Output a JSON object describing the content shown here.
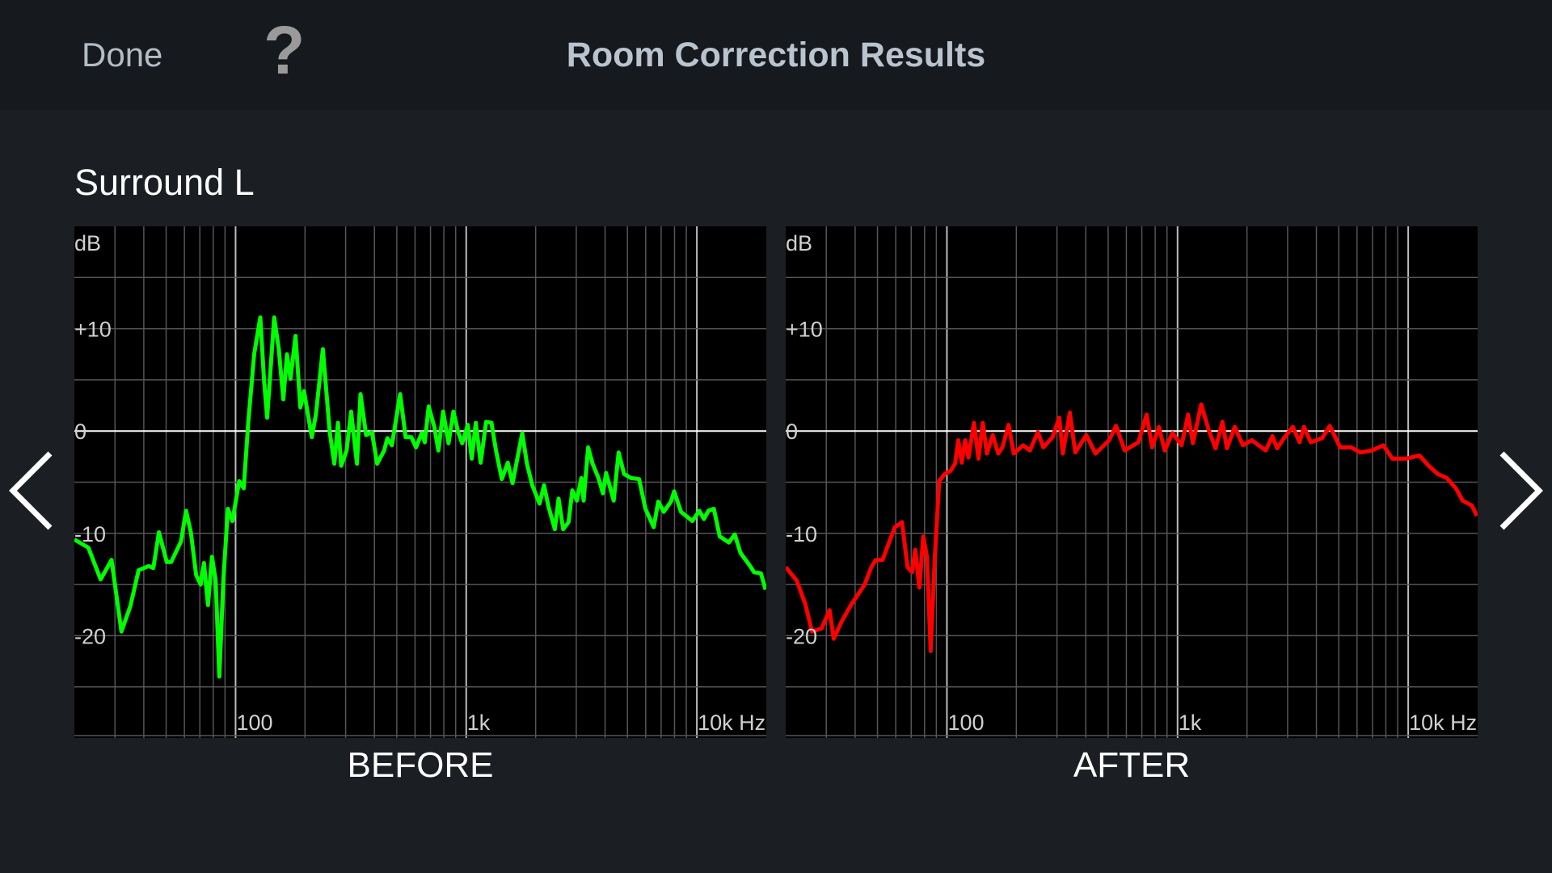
{
  "header": {
    "done_label": "Done",
    "help_label": "?",
    "title": "Room Correction Results"
  },
  "channel_name": "Surround L",
  "navigation": {
    "prev_icon": "chevron-left-icon",
    "next_icon": "chevron-right-icon"
  },
  "chart_data": [
    {
      "type": "line",
      "title": "BEFORE",
      "ylabel": "dB",
      "xscale": "log",
      "xlim": [
        20,
        20000
      ],
      "ylim": [
        -30,
        20
      ],
      "yticks": [
        {
          "value": 10,
          "label": "+10"
        },
        {
          "value": 0,
          "label": "0"
        },
        {
          "value": -10,
          "label": "-10"
        },
        {
          "value": -20,
          "label": "-20"
        }
      ],
      "xticks": [
        {
          "value": 100,
          "label": "100"
        },
        {
          "value": 1000,
          "label": "1k"
        },
        {
          "value": 10000,
          "label": "10k Hz"
        }
      ],
      "grid": true,
      "color": "#00ff00",
      "x": [
        20,
        23,
        26,
        29,
        32,
        35,
        38,
        42,
        44,
        46.5,
        50.3,
        52.6,
        58,
        61,
        64,
        67.5,
        70.6,
        72.9,
        75.9,
        79,
        82,
        85,
        88.5,
        92.6,
        96.9,
        103.7,
        108.5,
        113.5,
        120.4,
        128,
        133,
        137,
        147,
        154,
        161,
        167,
        173,
        182,
        191,
        198,
        214,
        223,
        239,
        256,
        268,
        278,
        287,
        303,
        317,
        336,
        348,
        368,
        390,
        411,
        441,
        455,
        476,
        517,
        546,
        578,
        606,
        641,
        661,
        687,
        727,
        757,
        794,
        838,
        880,
        923,
        961,
        1016,
        1057,
        1100,
        1155,
        1220,
        1287,
        1346,
        1427,
        1514,
        1588,
        1750,
        1834,
        1934,
        2079,
        2174,
        2274,
        2423,
        2513,
        2632,
        2779,
        2883,
        3016,
        3155,
        3227,
        3377,
        3531,
        3745,
        3915,
        4040,
        4358,
        4579,
        4837,
        5180,
        5615,
        5985,
        6500,
        6800,
        7180,
        7720,
        7970,
        8540,
        9560,
        10250,
        10730,
        11220,
        11850,
        12560,
        13760,
        14600,
        15450,
        16900,
        17700,
        18950,
        19850
      ],
      "y": [
        -10.6,
        -11.4,
        -14.5,
        -12.6,
        -19.6,
        -17.1,
        -13.6,
        -13.2,
        -13.4,
        -9.9,
        -12.8,
        -12.8,
        -10.8,
        -7.8,
        -9.9,
        -14.1,
        -15.0,
        -12.9,
        -17.0,
        -12.3,
        -14.6,
        -24,
        -14.6,
        -7.6,
        -8.8,
        -4.9,
        -5.6,
        0.8,
        7.5,
        11.1,
        4.8,
        1.3,
        11.1,
        8.0,
        3.1,
        7.5,
        5.1,
        9.3,
        2.3,
        3.9,
        -0.6,
        1.6,
        8.0,
        -0.1,
        -3.2,
        0.8,
        -3.4,
        -1.9,
        1.9,
        -3.2,
        3.6,
        -0.4,
        -0.1,
        -3.2,
        -1.9,
        -0.7,
        -1.4,
        3.6,
        -0.6,
        -0.6,
        -1.6,
        -0.2,
        -1.1,
        2.4,
        0.4,
        -1.9,
        1.9,
        -1.2,
        1.9,
        -0.1,
        -1.2,
        0.6,
        -2.7,
        0.8,
        -3.1,
        0.9,
        0.8,
        -1.9,
        -4.7,
        -3.1,
        -5.1,
        -0.2,
        -3.2,
        -5.3,
        -7.1,
        -5.3,
        -7.4,
        -9.6,
        -6.6,
        -9.6,
        -8.9,
        -5.8,
        -6.8,
        -4.6,
        -6.8,
        -1.6,
        -3.2,
        -4.6,
        -6.1,
        -4.1,
        -6.8,
        -2.1,
        -4.2,
        -4.6,
        -4.7,
        -7.6,
        -9.4,
        -6.9,
        -7.9,
        -6.9,
        -5.9,
        -7.9,
        -8.8,
        -7.8,
        -8.6,
        -7.8,
        -7.6,
        -10.3,
        -10.9,
        -10.1,
        -11.9,
        -13.1,
        -13.8,
        -13.9,
        -15.5
      ]
    },
    {
      "type": "line",
      "title": "AFTER",
      "ylabel": "dB",
      "xscale": "log",
      "xlim": [
        20,
        20000
      ],
      "ylim": [
        -30,
        20
      ],
      "yticks": [
        {
          "value": 10,
          "label": "+10"
        },
        {
          "value": 0,
          "label": "0"
        },
        {
          "value": -10,
          "label": "-10"
        },
        {
          "value": -20,
          "label": "-20"
        }
      ],
      "xticks": [
        {
          "value": 100,
          "label": "100"
        },
        {
          "value": 1000,
          "label": "1k"
        },
        {
          "value": 10000,
          "label": "10k Hz"
        }
      ],
      "grid": true,
      "color": "#ff0000",
      "x": [
        20,
        22.3,
        24.4,
        26,
        28.6,
        31,
        32.3,
        35,
        38.4,
        44,
        47,
        49.2,
        52.6,
        56.3,
        59.5,
        63.9,
        67.5,
        70.6,
        72.9,
        75.9,
        79,
        82,
        85,
        88.5,
        92.6,
        97.8,
        103.7,
        108.5,
        112,
        116,
        120,
        124,
        131,
        137,
        143,
        149,
        158,
        167,
        174,
        185,
        195,
        214,
        229,
        248,
        262,
        287,
        307,
        318,
        341,
        360,
        402,
        441,
        505,
        541,
        590,
        676,
        734,
        775,
        830,
        880,
        951,
        1041,
        1111,
        1165,
        1266,
        1365,
        1462,
        1565,
        1638,
        1770,
        1920,
        2100,
        2410,
        2578,
        2700,
        2890,
        3160,
        3380,
        3530,
        3780,
        4230,
        4570,
        5070,
        5670,
        6200,
        6950,
        7800,
        8540,
        9770,
        11200,
        12260,
        13450,
        14700,
        16100,
        17230,
        18900,
        19850
      ],
      "y": [
        -13.3,
        -14.6,
        -17.0,
        -19.6,
        -19.3,
        -17.5,
        -20.3,
        -18.6,
        -17.0,
        -15.0,
        -13.3,
        -12.6,
        -12.6,
        -10.8,
        -9.4,
        -8.9,
        -13.3,
        -13.8,
        -11.6,
        -15.3,
        -10.3,
        -12.3,
        -21.5,
        -12.6,
        -4.9,
        -4.2,
        -3.9,
        -3.2,
        -0.9,
        -3.1,
        -0.9,
        -2.6,
        0.8,
        -2.7,
        0.8,
        -2.2,
        -0.4,
        -2.2,
        -1.6,
        0.6,
        -2.2,
        -1.4,
        -1.9,
        -0.1,
        -1.6,
        -0.6,
        1.3,
        -2.2,
        1.8,
        -2.1,
        -0.4,
        -2.2,
        -0.9,
        0.5,
        -1.9,
        -1.1,
        1.6,
        -1.6,
        0.4,
        -1.9,
        -0.2,
        -1.4,
        1.6,
        -1.2,
        2.6,
        0.1,
        -1.7,
        0.9,
        -1.7,
        0.4,
        -1.4,
        -0.9,
        -1.9,
        -0.5,
        -1.7,
        -0.7,
        0.4,
        -1.1,
        0.4,
        -1.1,
        -0.7,
        0.5,
        -1.6,
        -1.6,
        -2.1,
        -1.9,
        -1.4,
        -2.7,
        -2.7,
        -2.4,
        -3.4,
        -4.2,
        -4.6,
        -5.6,
        -6.8,
        -7.3,
        -8.3
      ]
    }
  ]
}
